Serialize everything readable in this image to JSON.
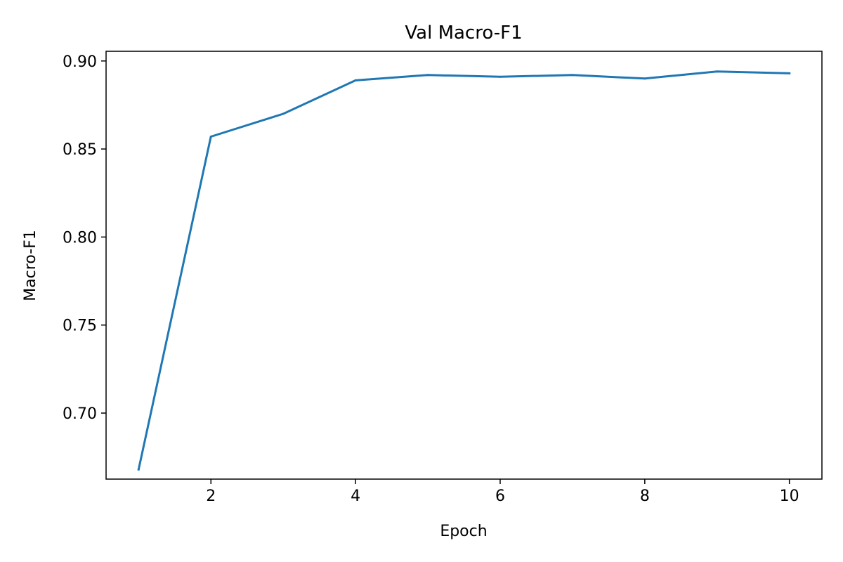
{
  "chart_data": {
    "type": "line",
    "title": "Val Macro-F1",
    "xlabel": "Epoch",
    "ylabel": "Macro-F1",
    "xlim": [
      0.55,
      10.45
    ],
    "ylim": [
      0.6625,
      0.9055
    ],
    "xticks": [
      2,
      4,
      6,
      8,
      10
    ],
    "xtick_labels": [
      "2",
      "4",
      "6",
      "8",
      "10"
    ],
    "yticks": [
      0.7,
      0.75,
      0.8,
      0.85,
      0.9
    ],
    "ytick_labels": [
      "0.70",
      "0.75",
      "0.80",
      "0.85",
      "0.90"
    ],
    "grid": false,
    "series": [
      {
        "color": "#1f77b4",
        "x": [
          1,
          2,
          3,
          4,
          5,
          6,
          7,
          8,
          9,
          10
        ],
        "y": [
          0.668,
          0.857,
          0.87,
          0.889,
          0.892,
          0.891,
          0.892,
          0.89,
          0.894,
          0.893
        ]
      }
    ]
  }
}
